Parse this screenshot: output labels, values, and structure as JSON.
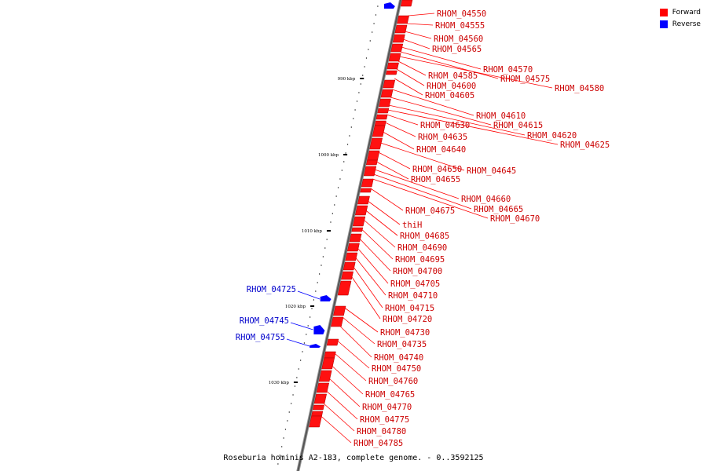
{
  "legend": {
    "forward_label": "Forward",
    "reverse_label": "Reverse",
    "forward_color": "#ff0000",
    "reverse_color": "#0000ff"
  },
  "caption": "Roseburia hominis A2-183, complete genome. - 0..3592125",
  "ticks": [
    "990 kbp",
    "1000 kbp",
    "1010 kbp",
    "1020 kbp",
    "1030 kbp"
  ],
  "forward_genes": [
    "RHOM_04550",
    "RHOM_04555",
    "RHOM_04560",
    "RHOM_04565",
    "RHOM_04570",
    "RHOM_04575",
    "RHOM_04580",
    "RHOM_04585",
    "RHOM_04600",
    "RHOM_04605",
    "RHOM_04610",
    "RHOM_04615",
    "RHOM_04620",
    "RHOM_04625",
    "RHOM_04630",
    "RHOM_04635",
    "RHOM_04640",
    "RHOM_04645",
    "RHOM_04650",
    "RHOM_04655",
    "RHOM_04660",
    "RHOM_04665",
    "RHOM_04670",
    "RHOM_04675",
    "thiH",
    "RHOM_04685",
    "RHOM_04690",
    "RHOM_04695",
    "RHOM_04700",
    "RHOM_04705",
    "RHOM_04710",
    "RHOM_04715",
    "RHOM_04720",
    "RHOM_04730",
    "RHOM_04735",
    "RHOM_04740",
    "RHOM_04750",
    "RHOM_04760",
    "RHOM_04765",
    "RHOM_04770",
    "RHOM_04775",
    "RHOM_04780",
    "RHOM_04785"
  ],
  "reverse_genes": [
    "RHOM_04725",
    "RHOM_04745",
    "RHOM_04755"
  ]
}
